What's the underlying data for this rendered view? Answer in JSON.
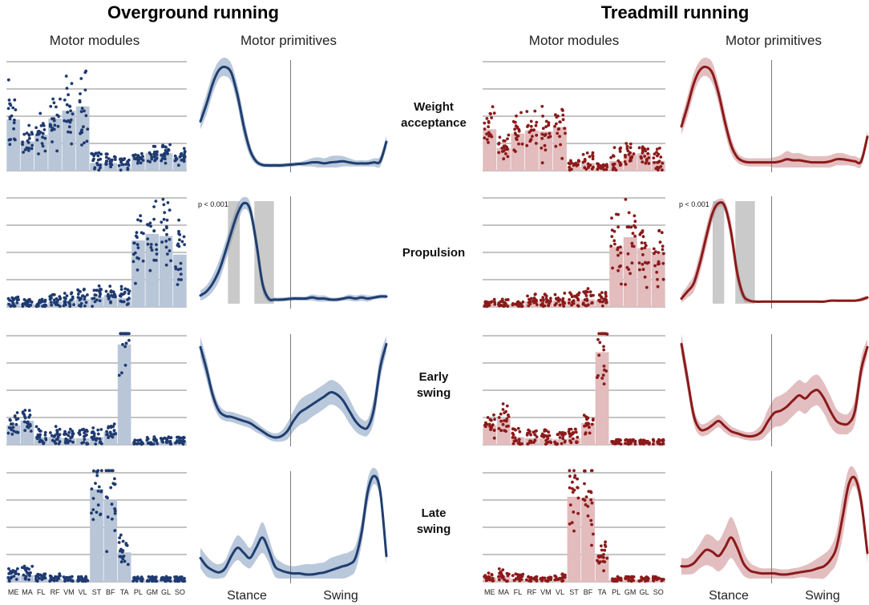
{
  "titles": {
    "left": "Overground running",
    "right": "Treadmill running"
  },
  "subtitles": {
    "modules": "Motor modules",
    "primitives": "Motor primitives"
  },
  "row_labels": [
    [
      "Weight",
      "acceptance"
    ],
    [
      "Propulsion"
    ],
    [
      "Early",
      "swing"
    ],
    [
      "Late",
      "swing"
    ]
  ],
  "phase_labels": {
    "stance": "Stance",
    "swing": "Swing"
  },
  "p_value": "p < 0.001",
  "colors": {
    "overground_line": "#1f3e6e",
    "overground_band": "#a9bad3",
    "overground_bar": "#b8c6d8",
    "overground_dot": "#1f3a70",
    "treadmill_line": "#8b1a1a",
    "treadmill_band": "#dcaeb0",
    "treadmill_bar": "#e3bcbd",
    "treadmill_dot": "#8b1a1a",
    "grid": "#888888",
    "sig": "#9e9e9e"
  },
  "chart_data": {
    "type": "bar",
    "muscles": [
      "ME",
      "MA",
      "FL",
      "RF",
      "VM",
      "VL",
      "ST",
      "BF",
      "TA",
      "PL",
      "GM",
      "GL",
      "SO"
    ],
    "ylim": [
      0,
      1
    ],
    "panels": [
      {
        "condition": "Overground running",
        "synergy": "Weight acceptance",
        "module_means": [
          0.47,
          0.27,
          0.33,
          0.48,
          0.55,
          0.59,
          0.07,
          0.07,
          0.05,
          0.12,
          0.16,
          0.16,
          0.12
        ],
        "primitive": [
          0.45,
          0.62,
          0.82,
          0.95,
          0.98,
          0.92,
          0.7,
          0.4,
          0.17,
          0.06,
          0.025,
          0.02,
          0.02,
          0.02,
          0.025,
          0.03,
          0.035,
          0.04,
          0.05,
          0.05,
          0.04,
          0.05,
          0.055,
          0.06,
          0.05,
          0.04,
          0.04,
          0.04,
          0.05,
          0.06,
          0.25
        ],
        "primitive_sd": [
          0.08,
          0.1,
          0.1,
          0.09,
          0.09,
          0.09,
          0.1,
          0.1,
          0.06,
          0.03,
          0.02,
          0.02,
          0.02,
          0.02,
          0.02,
          0.02,
          0.02,
          0.03,
          0.04,
          0.05,
          0.05,
          0.06,
          0.06,
          0.05,
          0.04,
          0.03,
          0.03,
          0.03,
          0.04,
          0.05,
          0.06
        ]
      },
      {
        "condition": "Overground running",
        "synergy": "Propulsion",
        "module_means": [
          0.04,
          0.03,
          0.03,
          0.05,
          0.06,
          0.07,
          0.09,
          0.11,
          0.08,
          0.61,
          0.67,
          0.65,
          0.48
        ],
        "primitive": [
          0.08,
          0.12,
          0.2,
          0.32,
          0.5,
          0.7,
          0.88,
          0.98,
          0.92,
          0.6,
          0.2,
          0.05,
          0.04,
          0.04,
          0.045,
          0.05,
          0.05,
          0.05,
          0.06,
          0.05,
          0.05,
          0.04,
          0.04,
          0.05,
          0.06,
          0.05,
          0.06,
          0.05,
          0.06,
          0.07,
          0.07
        ],
        "primitive_sd": [
          0.05,
          0.06,
          0.08,
          0.1,
          0.1,
          0.1,
          0.09,
          0.06,
          0.07,
          0.1,
          0.08,
          0.03,
          0.02,
          0.02,
          0.02,
          0.02,
          0.02,
          0.02,
          0.03,
          0.03,
          0.03,
          0.02,
          0.02,
          0.02,
          0.03,
          0.03,
          0.03,
          0.03,
          0.02,
          0.02,
          0.02
        ],
        "sig_phases": [
          [
            0.148,
            0.212
          ],
          [
            0.29,
            0.395
          ]
        ]
      },
      {
        "condition": "Overground running",
        "synergy": "Early swing",
        "module_means": [
          0.18,
          0.22,
          0.07,
          0.07,
          0.06,
          0.06,
          0.07,
          0.12,
          0.92,
          0.02,
          0.03,
          0.03,
          0.03
        ],
        "primitive": [
          0.92,
          0.7,
          0.45,
          0.3,
          0.25,
          0.24,
          0.22,
          0.2,
          0.18,
          0.14,
          0.1,
          0.06,
          0.04,
          0.05,
          0.1,
          0.2,
          0.28,
          0.32,
          0.36,
          0.4,
          0.44,
          0.48,
          0.46,
          0.4,
          0.3,
          0.2,
          0.14,
          0.14,
          0.32,
          0.72,
          0.95
        ],
        "primitive_sd": [
          0.1,
          0.1,
          0.08,
          0.06,
          0.05,
          0.05,
          0.05,
          0.05,
          0.05,
          0.05,
          0.04,
          0.04,
          0.04,
          0.05,
          0.08,
          0.1,
          0.12,
          0.13,
          0.12,
          0.12,
          0.12,
          0.12,
          0.12,
          0.12,
          0.12,
          0.1,
          0.08,
          0.08,
          0.12,
          0.12,
          0.08
        ]
      },
      {
        "condition": "Overground running",
        "synergy": "Late swing",
        "module_means": [
          0.05,
          0.06,
          0.03,
          0.03,
          0.02,
          0.02,
          0.85,
          0.75,
          0.27,
          0.02,
          0.02,
          0.02,
          0.02
        ],
        "primitive": [
          0.2,
          0.12,
          0.08,
          0.06,
          0.1,
          0.22,
          0.3,
          0.25,
          0.2,
          0.3,
          0.4,
          0.28,
          0.12,
          0.08,
          0.06,
          0.05,
          0.05,
          0.04,
          0.04,
          0.05,
          0.06,
          0.08,
          0.1,
          0.12,
          0.14,
          0.2,
          0.45,
          0.85,
          1.0,
          0.85,
          0.22
        ],
        "primitive_sd": [
          0.1,
          0.1,
          0.08,
          0.08,
          0.08,
          0.1,
          0.12,
          0.12,
          0.1,
          0.12,
          0.15,
          0.12,
          0.1,
          0.08,
          0.07,
          0.07,
          0.08,
          0.1,
          0.1,
          0.1,
          0.1,
          0.12,
          0.12,
          0.12,
          0.12,
          0.12,
          0.12,
          0.12,
          0.08,
          0.08,
          0.08
        ]
      },
      {
        "condition": "Treadmill running",
        "synergy": "Weight acceptance",
        "module_means": [
          0.38,
          0.21,
          0.34,
          0.37,
          0.36,
          0.4,
          0.04,
          0.07,
          0.03,
          0.09,
          0.15,
          0.16,
          0.09
        ],
        "primitive": [
          0.4,
          0.6,
          0.82,
          0.95,
          0.98,
          0.92,
          0.72,
          0.45,
          0.22,
          0.1,
          0.06,
          0.05,
          0.05,
          0.05,
          0.05,
          0.05,
          0.06,
          0.08,
          0.07,
          0.07,
          0.06,
          0.05,
          0.05,
          0.05,
          0.06,
          0.08,
          0.08,
          0.07,
          0.06,
          0.06,
          0.3
        ],
        "primitive_sd": [
          0.08,
          0.1,
          0.1,
          0.09,
          0.09,
          0.1,
          0.1,
          0.1,
          0.08,
          0.05,
          0.04,
          0.04,
          0.04,
          0.04,
          0.04,
          0.05,
          0.06,
          0.08,
          0.07,
          0.07,
          0.06,
          0.06,
          0.06,
          0.06,
          0.06,
          0.06,
          0.06,
          0.05,
          0.05,
          0.05,
          0.06
        ]
      },
      {
        "condition": "Treadmill running",
        "synergy": "Propulsion",
        "module_means": [
          0.03,
          0.03,
          0.02,
          0.05,
          0.05,
          0.06,
          0.06,
          0.07,
          0.06,
          0.55,
          0.64,
          0.54,
          0.49
        ],
        "primitive": [
          0.05,
          0.12,
          0.2,
          0.4,
          0.65,
          0.88,
          0.98,
          0.95,
          0.7,
          0.3,
          0.08,
          0.03,
          0.02,
          0.02,
          0.02,
          0.02,
          0.02,
          0.02,
          0.02,
          0.02,
          0.02,
          0.02,
          0.02,
          0.02,
          0.03,
          0.03,
          0.03,
          0.03,
          0.03,
          0.04,
          0.06
        ],
        "primitive_sd": [
          0.04,
          0.06,
          0.08,
          0.1,
          0.1,
          0.08,
          0.04,
          0.05,
          0.1,
          0.1,
          0.05,
          0.02,
          0.01,
          0.01,
          0.01,
          0.01,
          0.01,
          0.01,
          0.01,
          0.01,
          0.01,
          0.01,
          0.01,
          0.01,
          0.01,
          0.01,
          0.01,
          0.01,
          0.01,
          0.02,
          0.02
        ],
        "sig_phases": [
          [
            0.168,
            0.23
          ],
          [
            0.29,
            0.395
          ]
        ]
      },
      {
        "condition": "Treadmill running",
        "synergy": "Early swing",
        "module_means": [
          0.18,
          0.24,
          0.07,
          0.06,
          0.06,
          0.05,
          0.06,
          0.2,
          0.85,
          0.02,
          0.02,
          0.02,
          0.02
        ],
        "primitive": [
          0.95,
          0.6,
          0.25,
          0.12,
          0.12,
          0.16,
          0.2,
          0.15,
          0.1,
          0.08,
          0.06,
          0.05,
          0.06,
          0.1,
          0.2,
          0.28,
          0.3,
          0.34,
          0.4,
          0.45,
          0.42,
          0.48,
          0.5,
          0.42,
          0.3,
          0.2,
          0.17,
          0.18,
          0.3,
          0.7,
          0.92
        ],
        "primitive_sd": [
          0.1,
          0.1,
          0.08,
          0.06,
          0.06,
          0.06,
          0.06,
          0.06,
          0.05,
          0.04,
          0.04,
          0.04,
          0.05,
          0.08,
          0.12,
          0.14,
          0.15,
          0.15,
          0.15,
          0.15,
          0.15,
          0.15,
          0.15,
          0.15,
          0.15,
          0.12,
          0.1,
          0.1,
          0.12,
          0.12,
          0.08
        ]
      },
      {
        "condition": "Treadmill running",
        "synergy": "Late swing",
        "module_means": [
          0.04,
          0.05,
          0.03,
          0.02,
          0.02,
          0.03,
          0.78,
          0.77,
          0.24,
          0.02,
          0.02,
          0.02,
          0.02
        ],
        "primitive": [
          0.12,
          0.12,
          0.15,
          0.22,
          0.28,
          0.26,
          0.22,
          0.3,
          0.4,
          0.3,
          0.15,
          0.08,
          0.06,
          0.05,
          0.05,
          0.05,
          0.04,
          0.04,
          0.05,
          0.06,
          0.07,
          0.08,
          0.1,
          0.12,
          0.18,
          0.3,
          0.6,
          0.92,
          0.98,
          0.75,
          0.25
        ],
        "primitive_sd": [
          0.08,
          0.08,
          0.1,
          0.12,
          0.15,
          0.15,
          0.15,
          0.18,
          0.2,
          0.18,
          0.12,
          0.08,
          0.06,
          0.05,
          0.05,
          0.05,
          0.05,
          0.05,
          0.05,
          0.05,
          0.06,
          0.08,
          0.1,
          0.12,
          0.12,
          0.15,
          0.2,
          0.15,
          0.08,
          0.1,
          0.1
        ]
      }
    ]
  }
}
